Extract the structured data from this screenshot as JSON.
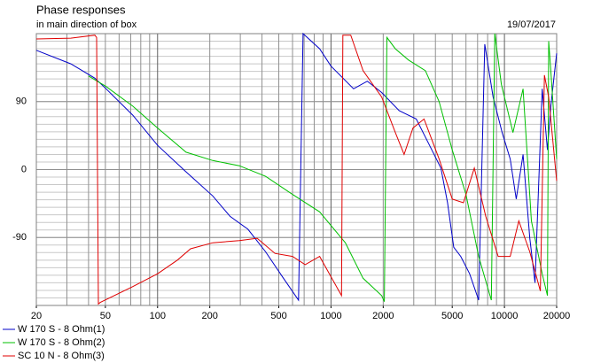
{
  "chart_data": {
    "type": "line",
    "title": "Phase responses",
    "subtitle": "in main direction of box",
    "date": "19/07/2017",
    "xscale": "log",
    "xlim": [
      20,
      20000
    ],
    "xticks": [
      20,
      50,
      100,
      200,
      500,
      1000,
      2000,
      5000,
      10000,
      20000
    ],
    "ylim": [
      -180,
      180
    ],
    "yticks": [
      -90,
      0,
      90
    ],
    "y_minor_step": 10,
    "grid": true,
    "legend": "bottom-left",
    "series": [
      {
        "name": "W 170 S - 8 Ohm(1)",
        "color": "#0000c8",
        "x": [
          20,
          31.6,
          43.5,
          50.5,
          72,
          100,
          146,
          208,
          262,
          332,
          420,
          532,
          650,
          690,
          860,
          1000,
          1350,
          1620,
          1960,
          2470,
          3100,
          3700,
          4300,
          4700,
          5100,
          5600,
          6300,
          7100,
          7700,
          8600,
          9700,
          10800,
          11700,
          12800,
          14000,
          15000,
          16500,
          17700,
          18500,
          20000
        ],
        "values": [
          158,
          140,
          121,
          107,
          72,
          32,
          -3,
          -35,
          -62,
          -79,
          -109,
          -144,
          -173,
          180,
          160,
          137,
          107,
          117,
          102,
          78,
          67,
          32,
          2,
          -44,
          -103,
          -115,
          -138,
          -173,
          166,
          96,
          49,
          14,
          -39,
          20,
          -91,
          -150,
          107,
          26,
          84,
          154
        ]
      },
      {
        "name": "W 170 S - 8 Ohm(2)",
        "color": "#00c000",
        "x": [
          40,
          50.5,
          72,
          100,
          146,
          208,
          296,
          420,
          600,
          860,
          1210,
          1530,
          1960,
          2030,
          2100,
          2350,
          2800,
          3500,
          4200,
          5000,
          6000,
          7100,
          8400,
          8800,
          9600,
          11200,
          12800,
          14300,
          16500,
          17700,
          18000,
          18500,
          20000
        ],
        "values": [
          124,
          110,
          84,
          55,
          23,
          12,
          5,
          -9,
          -33,
          -56,
          -97,
          -144,
          -167,
          -175,
          175,
          160,
          145,
          131,
          90,
          26,
          -33,
          -115,
          -173,
          180,
          113,
          49,
          107,
          -68,
          -138,
          -167,
          170,
          131,
          14
        ]
      },
      {
        "name": "SC 10 N - 8 Ohm(3)",
        "color": "#e00000",
        "x": [
          20,
          31.6,
          43.5,
          44.5,
          45.6,
          46.7,
          72,
          100,
          130,
          155,
          208,
          296,
          375,
          475,
          600,
          710,
          860,
          1150,
          1170,
          1300,
          1530,
          1960,
          2350,
          2640,
          2970,
          3440,
          4200,
          5000,
          5800,
          6700,
          7800,
          9200,
          10800,
          12100,
          14000,
          16100,
          17000,
          18000,
          20000
        ],
        "values": [
          173,
          174,
          178,
          175,
          -178,
          -176,
          -155,
          -138,
          -120,
          -105,
          -97,
          -94,
          -91,
          -111,
          -115,
          -126,
          -115,
          -167,
          178,
          178,
          131,
          96,
          49,
          20,
          55,
          67,
          14,
          -39,
          -44,
          2,
          -62,
          -115,
          -115,
          -68,
          -109,
          -161,
          125,
          96,
          -15
        ]
      }
    ]
  }
}
